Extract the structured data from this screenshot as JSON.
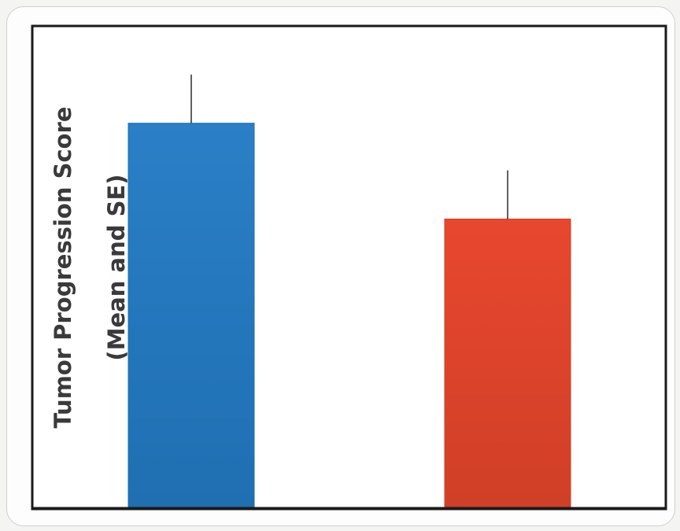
{
  "chart_data": {
    "type": "bar",
    "title": "",
    "ylabel_lines": [
      "Tumor Progression Score",
      "(Mean and SE)"
    ],
    "xlabel": "",
    "categories": [
      "",
      ""
    ],
    "ylim": [
      0,
      100
    ],
    "values": [
      79.8,
      59.9
    ],
    "errors": [
      10.1,
      10.1
    ],
    "bar_colors": [
      "#2a7fc6",
      "#e8472e"
    ],
    "bar_colors_dark": [
      "#1f6fb2",
      "#d03f27"
    ],
    "grid": false,
    "legend": "none",
    "axis_color": "#1a1a1a"
  }
}
